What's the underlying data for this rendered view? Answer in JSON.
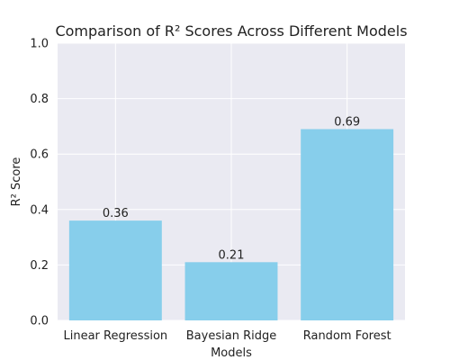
{
  "chart_data": {
    "type": "bar",
    "title": "Comparison of R² Scores Across Different Models",
    "xlabel": "Models",
    "ylabel": "R² Score",
    "categories": [
      "Linear Regression",
      "Bayesian Ridge",
      "Random Forest"
    ],
    "values": [
      0.36,
      0.21,
      0.69
    ],
    "data_labels": [
      "0.36",
      "0.21",
      "0.69"
    ],
    "ylim": [
      0,
      1.0
    ],
    "yticks": [
      "0.0",
      "0.2",
      "0.4",
      "0.6",
      "0.8",
      "1.0"
    ],
    "grid": true,
    "colors": {
      "bar": "#87CEEB",
      "plot_background": "#EAEAF2",
      "grid": "#FFFFFF"
    }
  }
}
